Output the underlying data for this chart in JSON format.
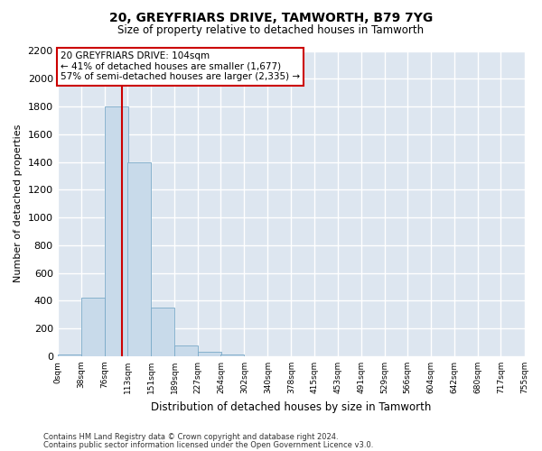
{
  "title": "20, GREYFRIARS DRIVE, TAMWORTH, B79 7YG",
  "subtitle": "Size of property relative to detached houses in Tamworth",
  "xlabel": "Distribution of detached houses by size in Tamworth",
  "ylabel": "Number of detached properties",
  "bar_color": "#c8daea",
  "bar_edge_color": "#7aaac8",
  "bg_color": "#dde6f0",
  "grid_color": "#ffffff",
  "fig_bg": "#ffffff",
  "bin_edges": [
    0,
    38,
    76,
    113,
    151,
    189,
    227,
    264,
    302,
    340,
    378,
    415,
    453,
    491,
    529,
    566,
    604,
    642,
    680,
    717,
    755
  ],
  "bin_labels": [
    "0sqm",
    "38sqm",
    "76sqm",
    "113sqm",
    "151sqm",
    "189sqm",
    "227sqm",
    "264sqm",
    "302sqm",
    "340sqm",
    "378sqm",
    "415sqm",
    "453sqm",
    "491sqm",
    "529sqm",
    "566sqm",
    "604sqm",
    "642sqm",
    "680sqm",
    "717sqm",
    "755sqm"
  ],
  "bar_heights": [
    15,
    420,
    1800,
    1400,
    350,
    80,
    30,
    15,
    0,
    0,
    0,
    0,
    0,
    0,
    0,
    0,
    0,
    0,
    0,
    0
  ],
  "vline_x": 104,
  "vline_color": "#cc0000",
  "ann_line1": "20 GREYFRIARS DRIVE: 104sqm",
  "ann_line2": "← 41% of detached houses are smaller (1,677)",
  "ann_line3": "57% of semi-detached houses are larger (2,335) →",
  "ann_box_color": "#cc0000",
  "ylim": [
    0,
    2200
  ],
  "yticks": [
    0,
    200,
    400,
    600,
    800,
    1000,
    1200,
    1400,
    1600,
    1800,
    2000,
    2200
  ],
  "footnote1": "Contains HM Land Registry data © Crown copyright and database right 2024.",
  "footnote2": "Contains public sector information licensed under the Open Government Licence v3.0."
}
